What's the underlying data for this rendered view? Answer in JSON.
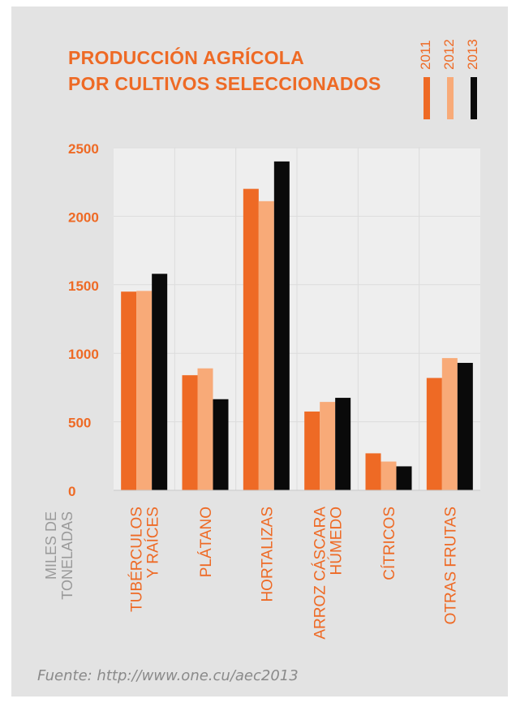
{
  "title_lines": [
    "PRODUCCIÓN AGRÍCOLA",
    "POR CULTIVOS SELECCIONADOS"
  ],
  "source": "Fuente: http://www.one.cu/aec2013",
  "colors": {
    "title": "#ee6a25",
    "axis_text": "#ee6a25",
    "ylabel": "#9a9a9a",
    "panel_bg": "#e3e3e3",
    "plot_bg": "#eeeeee",
    "grid": "#dcdcdc"
  },
  "chart_data": {
    "type": "bar",
    "ylabel": "MILES DE TONELADAS",
    "ylabel_lines": [
      "MILES DE",
      "TONELADAS"
    ],
    "ylim": [
      0,
      2500
    ],
    "yticks": [
      0,
      500,
      1000,
      1500,
      2000,
      2500
    ],
    "grid": true,
    "legend_position": "top-right",
    "categories": [
      "TUBÉRCULOS Y RAÍCES",
      "PLÁTANO",
      "HORTALIZAS",
      "ARROZ CÁSCARA HÚMEDO",
      "CÍTRICOS",
      "OTRAS FRUTAS"
    ],
    "category_lines": [
      [
        "TUBÉRCULOS",
        "Y RAÍCES"
      ],
      [
        "PLÁTANO"
      ],
      [
        "HORTALIZAS"
      ],
      [
        "ARROZ CÁSCARA",
        "HÚMEDO"
      ],
      [
        "CÍTRICOS"
      ],
      [
        "OTRAS FRUTAS"
      ]
    ],
    "series": [
      {
        "name": "2011",
        "color": "#ee6a25",
        "values": [
          1450,
          840,
          2200,
          575,
          270,
          820
        ]
      },
      {
        "name": "2012",
        "color": "#f8aa78",
        "values": [
          1455,
          890,
          2110,
          645,
          210,
          965
        ]
      },
      {
        "name": "2013",
        "color": "#0a0a0a",
        "values": [
          1580,
          665,
          2400,
          675,
          175,
          930
        ]
      }
    ]
  }
}
